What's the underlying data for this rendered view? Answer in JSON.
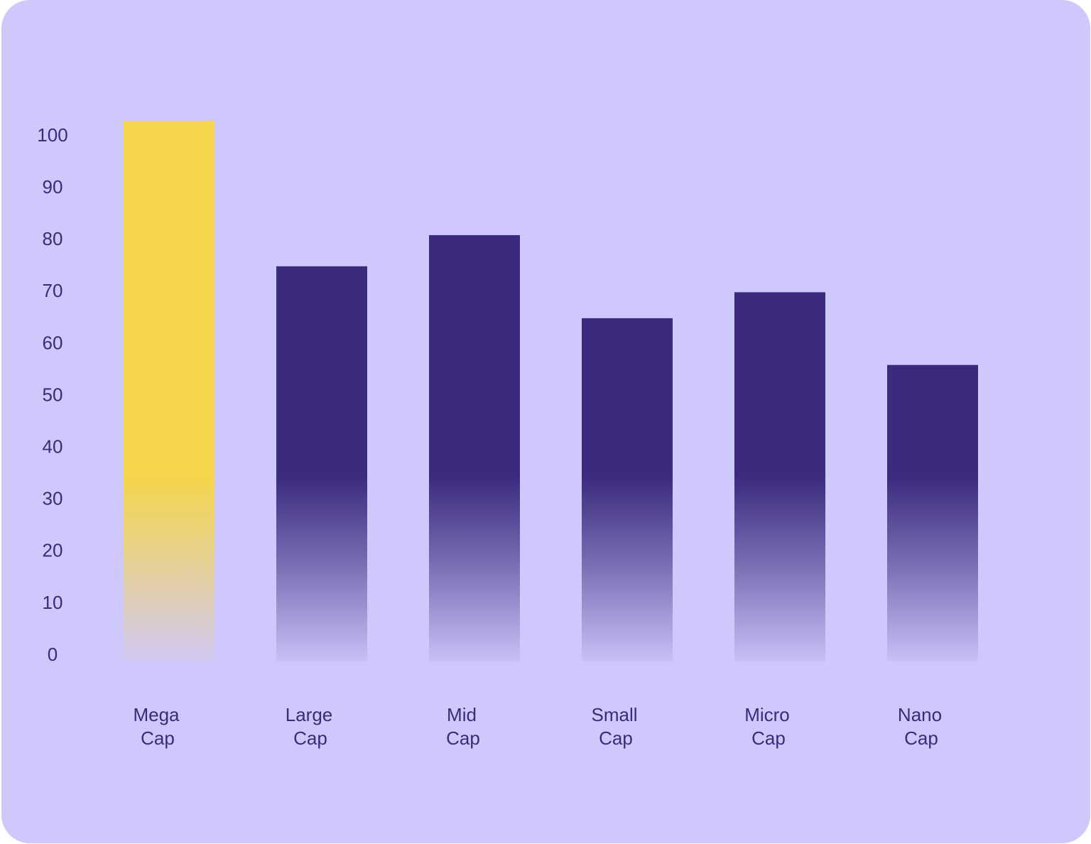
{
  "chart_data": {
    "type": "bar",
    "categories": [
      [
        "Mega",
        "Cap"
      ],
      [
        "Large",
        "Cap"
      ],
      [
        "Mid",
        "Cap"
      ],
      [
        "Small",
        "Cap"
      ],
      [
        "Micro",
        "Cap"
      ],
      [
        "Nano",
        "Cap"
      ]
    ],
    "values": [
      103,
      75,
      81,
      65,
      70,
      56
    ],
    "colors": [
      "#f5d54a",
      "#3b2a7e",
      "#3b2a7e",
      "#3b2a7e",
      "#3b2a7e",
      "#3b2a7e"
    ],
    "ylim": [
      0,
      110
    ],
    "yticks": [
      0,
      10,
      20,
      30,
      40,
      50,
      60,
      70,
      80,
      90,
      100
    ],
    "grid": false
  }
}
